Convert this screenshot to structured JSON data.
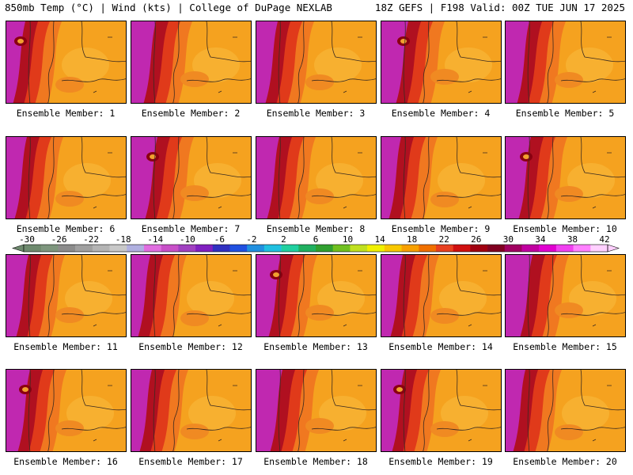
{
  "header": {
    "left": "850mb Temp (°C) | Wind (kts) | College of DuPage NEXLAB",
    "right": "18Z GEFS | F198 Valid: 00Z TUE JUN 17 2025"
  },
  "members": [
    "Ensemble Member: 1",
    "Ensemble Member: 2",
    "Ensemble Member: 3",
    "Ensemble Member: 4",
    "Ensemble Member: 5",
    "Ensemble Member: 6",
    "Ensemble Member: 7",
    "Ensemble Member: 8",
    "Ensemble Member: 9",
    "Ensemble Member: 10",
    "Ensemble Member: 11",
    "Ensemble Member: 12",
    "Ensemble Member: 13",
    "Ensemble Member: 14",
    "Ensemble Member: 15",
    "Ensemble Member: 16",
    "Ensemble Member: 17",
    "Ensemble Member: 18",
    "Ensemble Member: 19",
    "Ensemble Member: 20"
  ],
  "colorbar": {
    "tick_labels": [
      "-30",
      "-26",
      "-22",
      "-18",
      "-14",
      "-10",
      "-6",
      "-2",
      "2",
      "6",
      "10",
      "14",
      "18",
      "22",
      "26",
      "30",
      "34",
      "38",
      "42"
    ],
    "colors": [
      "#6e8a6e",
      "#7e967e",
      "#8c8c8c",
      "#a0a0a0",
      "#b4b4b4",
      "#c8c8c8",
      "#b0b0e0",
      "#e06ee0",
      "#c850c8",
      "#a040c0",
      "#8020c0",
      "#3030c0",
      "#2050e0",
      "#2090e0",
      "#20c0e0",
      "#20d0a0",
      "#20b060",
      "#30a030",
      "#70c020",
      "#c0e020",
      "#f0f000",
      "#f8c800",
      "#f8a000",
      "#f07000",
      "#e84020",
      "#d01010",
      "#a00010",
      "#800020",
      "#a00060",
      "#c000a0",
      "#e000d0",
      "#f040f0",
      "#ff80ff",
      "#ffd0ff"
    ]
  }
}
